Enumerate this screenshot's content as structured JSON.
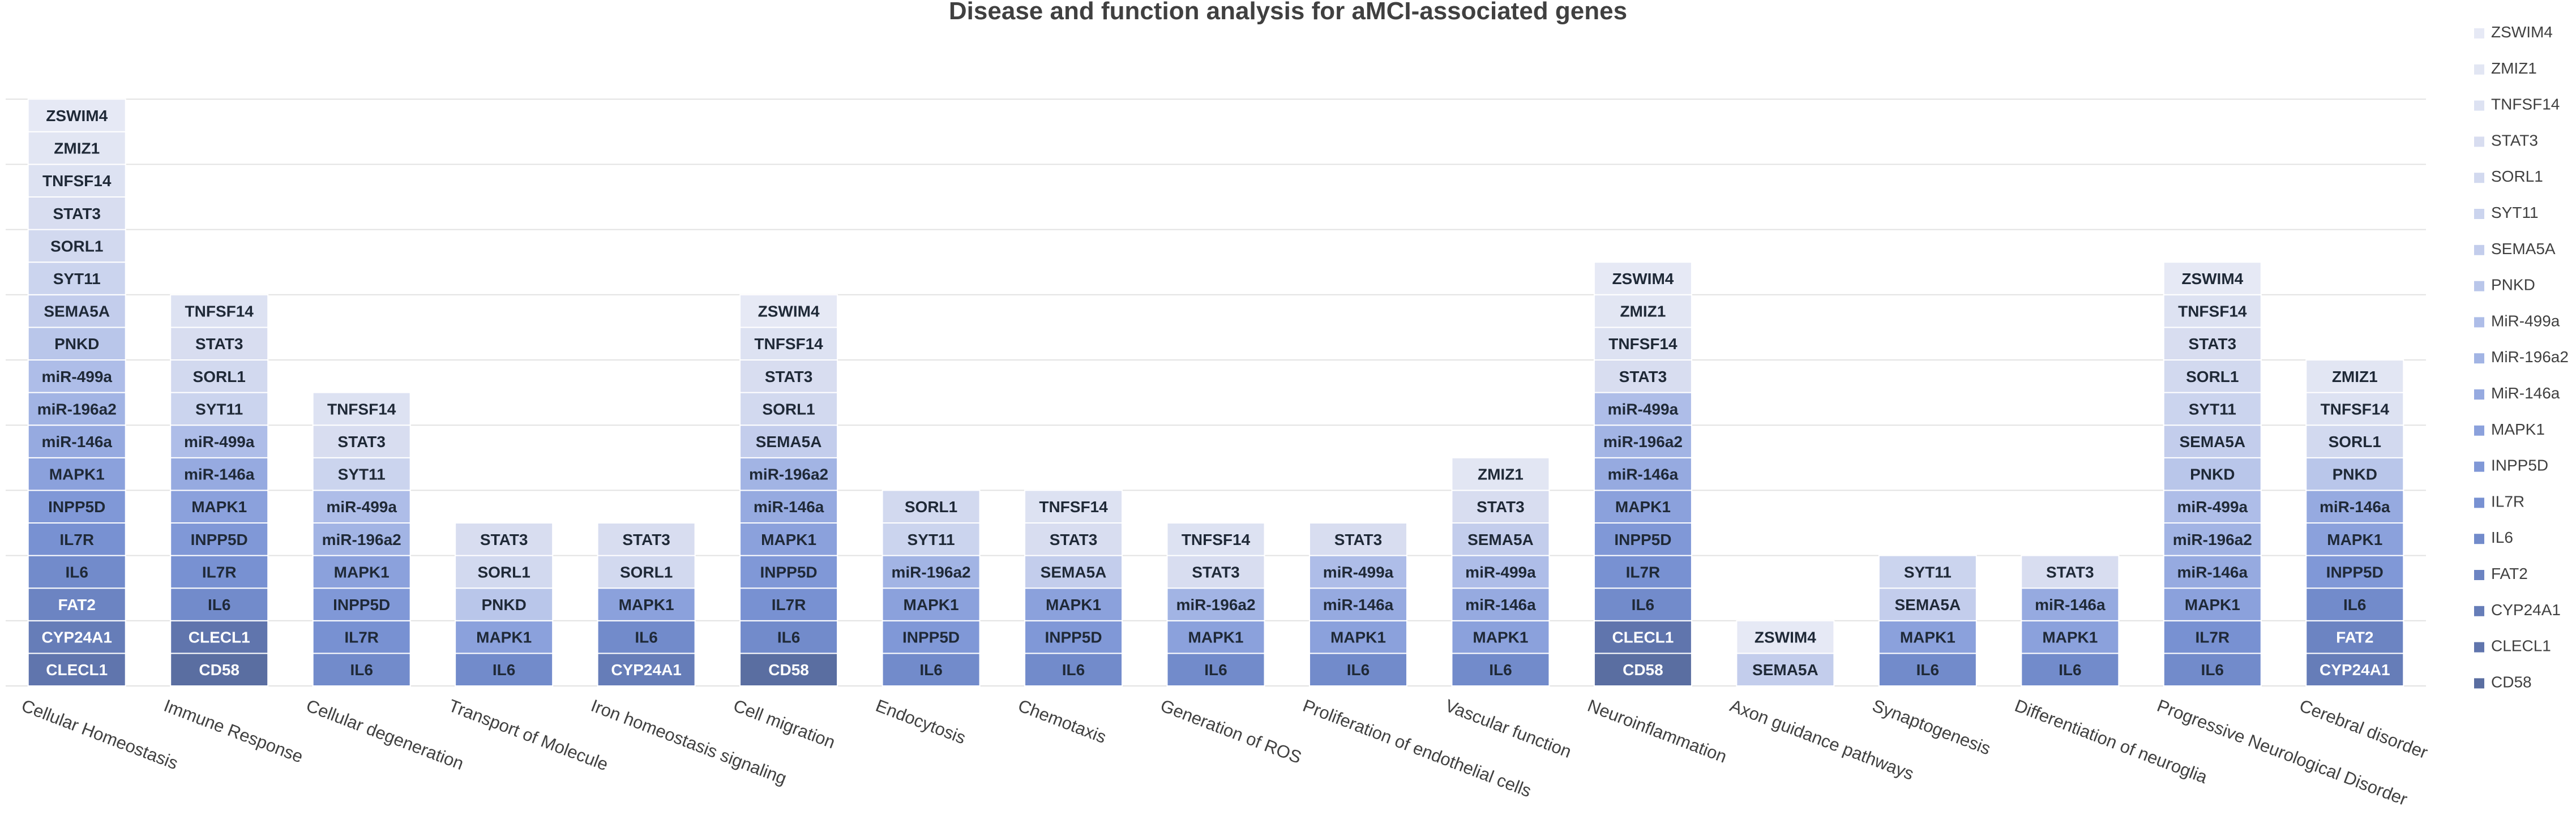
{
  "chart_data": {
    "type": "bar",
    "stacked": true,
    "title": "Disease and function analysis for aMCI-associated genes",
    "xlabel": "",
    "ylabel": "",
    "legend_position": "right",
    "legend": [
      "ZSWIM4",
      "ZMIZ1",
      "TNFSF14",
      "STAT3",
      "SORL1",
      "SYT11",
      "SEMA5A",
      "PNKD",
      "MiR-499a",
      "MiR-196a2",
      "MiR-146a",
      "MAPK1",
      "INPP5D",
      "IL7R",
      "IL6",
      "FAT2",
      "CYP24A1",
      "CLECL1",
      "CD58"
    ],
    "categories": [
      {
        "name": "Cellular Homeostasis",
        "genes": [
          "CLECL1",
          "CYP24A1",
          "FAT2",
          "IL6",
          "IL7R",
          "INPP5D",
          "MAPK1",
          "miR-146a",
          "miR-196a2",
          "miR-499a",
          "PNKD",
          "SEMA5A",
          "SYT11",
          "SORL1",
          "STAT3",
          "TNFSF14",
          "ZMIZ1",
          "ZSWIM4"
        ]
      },
      {
        "name": "Immune Response",
        "genes": [
          "CD58",
          "CLECL1",
          "IL6",
          "IL7R",
          "INPP5D",
          "MAPK1",
          "miR-146a",
          "miR-499a",
          "SYT11",
          "SORL1",
          "STAT3",
          "TNFSF14"
        ]
      },
      {
        "name": "Cellular degeneration",
        "genes": [
          "IL6",
          "IL7R",
          "INPP5D",
          "MAPK1",
          "miR-196a2",
          "miR-499a",
          "SYT11",
          "STAT3",
          "TNFSF14"
        ]
      },
      {
        "name": "Transport of Molecule",
        "genes": [
          "IL6",
          "MAPK1",
          "PNKD",
          "SORL1",
          "STAT3"
        ]
      },
      {
        "name": "Iron homeostasis signaling",
        "genes": [
          "CYP24A1",
          "IL6",
          "MAPK1",
          "SORL1",
          "STAT3"
        ]
      },
      {
        "name": "Cell migration",
        "genes": [
          "CD58",
          "IL6",
          "IL7R",
          "INPP5D",
          "MAPK1",
          "miR-146a",
          "miR-196a2",
          "SEMA5A",
          "SORL1",
          "STAT3",
          "TNFSF14",
          "ZSWIM4"
        ]
      },
      {
        "name": "Endocytosis",
        "genes": [
          "IL6",
          "INPP5D",
          "MAPK1",
          "miR-196a2",
          "SYT11",
          "SORL1"
        ]
      },
      {
        "name": "Chemotaxis",
        "genes": [
          "IL6",
          "INPP5D",
          "MAPK1",
          "SEMA5A",
          "STAT3",
          "TNFSF14"
        ]
      },
      {
        "name": "Generation of ROS",
        "genes": [
          "IL6",
          "MAPK1",
          "miR-196a2",
          "STAT3",
          "TNFSF14"
        ]
      },
      {
        "name": "Proliferation of endothelial cells",
        "genes": [
          "IL6",
          "MAPK1",
          "miR-146a",
          "miR-499a",
          "STAT3"
        ]
      },
      {
        "name": "Vascular function",
        "genes": [
          "IL6",
          "MAPK1",
          "miR-146a",
          "miR-499a",
          "SEMA5A",
          "STAT3",
          "ZMIZ1"
        ]
      },
      {
        "name": "Neuroinflammation",
        "genes": [
          "CD58",
          "CLECL1",
          "IL6",
          "IL7R",
          "INPP5D",
          "MAPK1",
          "miR-146a",
          "miR-196a2",
          "miR-499a",
          "STAT3",
          "TNFSF14",
          "ZMIZ1",
          "ZSWIM4"
        ]
      },
      {
        "name": "Axon guidance pathways",
        "genes": [
          "SEMA5A",
          "ZSWIM4"
        ]
      },
      {
        "name": "Synaptogenesis",
        "genes": [
          "IL6",
          "MAPK1",
          "SEMA5A",
          "SYT11"
        ]
      },
      {
        "name": "Differentiation of neuroglia",
        "genes": [
          "IL6",
          "MAPK1",
          "miR-146a",
          "STAT3"
        ]
      },
      {
        "name": "Progressive Neurological Disorder",
        "genes": [
          "IL6",
          "IL7R",
          "MAPK1",
          "miR-146a",
          "miR-196a2",
          "miR-499a",
          "PNKD",
          "SEMA5A",
          "SYT11",
          "SORL1",
          "STAT3",
          "TNFSF14",
          "ZSWIM4"
        ]
      },
      {
        "name": "Cerebral disorder",
        "genes": [
          "CYP24A1",
          "FAT2",
          "IL6",
          "INPP5D",
          "MAPK1",
          "miR-146a",
          "PNKD",
          "SORL1",
          "TNFSF14",
          "ZMIZ1"
        ]
      }
    ],
    "series": [
      {
        "name": "ZSWIM4",
        "color": "#e6e9f5"
      },
      {
        "name": "ZMIZ1",
        "color": "#e2e6f3"
      },
      {
        "name": "TNFSF14",
        "color": "#dde2f2"
      },
      {
        "name": "STAT3",
        "color": "#d8ddf0"
      },
      {
        "name": "SORL1",
        "color": "#d2d9ef"
      },
      {
        "name": "SYT11",
        "color": "#cbd4ee"
      },
      {
        "name": "SEMA5A",
        "color": "#c3cdec"
      },
      {
        "name": "PNKD",
        "color": "#b9c6ea"
      },
      {
        "name": "MiR-499a",
        "color": "#aebde8"
      },
      {
        "name": "MiR-196a2",
        "color": "#a2b4e4"
      },
      {
        "name": "MiR-146a",
        "color": "#96aae0"
      },
      {
        "name": "MAPK1",
        "color": "#8ba1dc"
      },
      {
        "name": "INPP5D",
        "color": "#8098d7"
      },
      {
        "name": "IL7R",
        "color": "#7891d2"
      },
      {
        "name": "IL6",
        "color": "#728bcb"
      },
      {
        "name": "FAT2",
        "color": "#6c84c2"
      },
      {
        "name": "CYP24A1",
        "color": "#667db8"
      },
      {
        "name": "CLECL1",
        "color": "#6075ad"
      },
      {
        "name": "CD58",
        "color": "#5a6ea1"
      }
    ],
    "ylim": [
      0,
      18
    ],
    "grid": true
  }
}
